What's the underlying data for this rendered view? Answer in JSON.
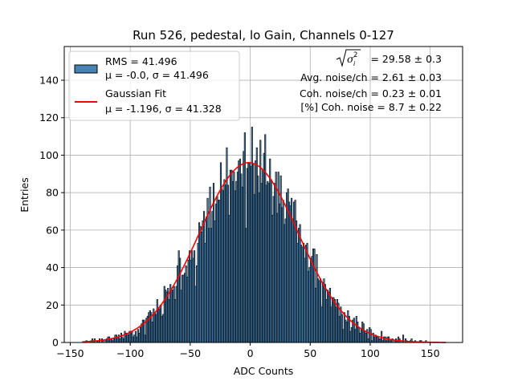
{
  "chart_data": {
    "type": "bar",
    "title": "Run 526, pedestal, lo Gain, Channels 0-127",
    "xlabel": "ADC Counts",
    "ylabel": "Entries",
    "xlim": [
      -155,
      177
    ],
    "ylim": [
      0,
      158
    ],
    "xticks": [
      -150,
      -100,
      -50,
      0,
      50,
      100,
      150
    ],
    "yticks": [
      0,
      20,
      40,
      60,
      80,
      100,
      120,
      140
    ],
    "grid": true,
    "legend_position": "top-left",
    "bin_width": 1,
    "histogram": {
      "name": "RMS = 41.496",
      "stats": "μ = -0.0, σ = 41.496",
      "color": "#4682b4",
      "mean": 0.0,
      "sigma": 41.496,
      "entries": 10000,
      "x_range": [
        -140,
        163
      ]
    },
    "fit": {
      "name": "Gaussian Fit",
      "stats": "μ = -1.196, σ = 41.328",
      "color": "#ff0000",
      "mu": -1.196,
      "sigma": 41.328,
      "amplitude": 96,
      "x_range": [
        -140,
        163
      ]
    },
    "annotations": {
      "sqrt_value": "= 29.58 ± 0.3",
      "avg_noise": "Avg. noise/ch = 2.61 ± 0.03",
      "coh_noise": "Coh. noise/ch = 0.23 ± 0.01",
      "coh_pct": "[%] Coh. noise = 8.7 ± 0.22"
    }
  }
}
